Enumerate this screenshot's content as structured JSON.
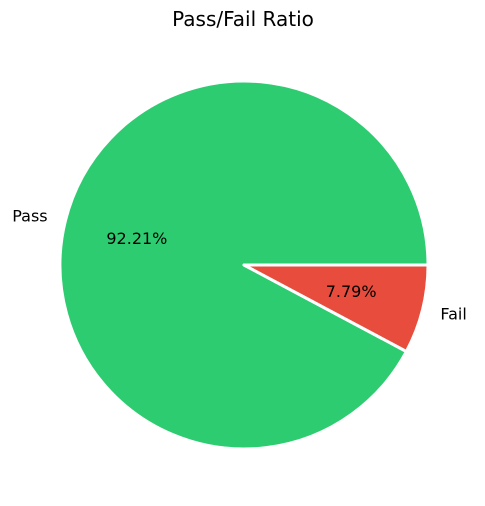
{
  "chart_data": {
    "type": "pie",
    "title": "Pass/Fail Ratio",
    "categories": [
      "Pass",
      "Fail"
    ],
    "values": [
      92.21,
      7.79
    ],
    "value_labels": [
      "92.21%",
      "7.79%"
    ],
    "colors": [
      "#2ecc71",
      "#e74c3c"
    ],
    "start_angle_deg": 0,
    "direction": "counterclockwise",
    "slice_edge_color": "#ffffff",
    "legend": "none"
  }
}
